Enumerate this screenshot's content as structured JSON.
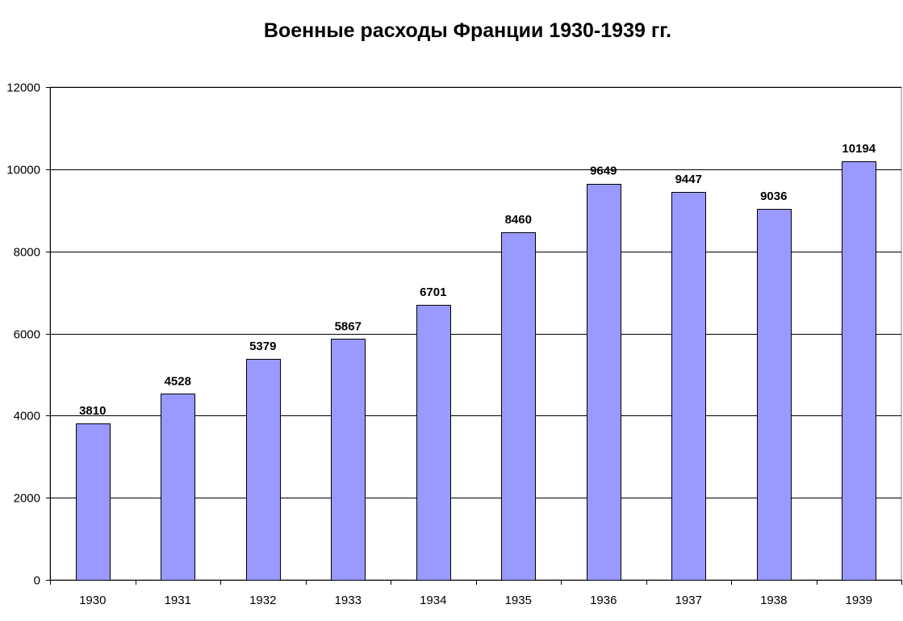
{
  "chart_data": {
    "type": "bar",
    "title": "Военные расходы Франции 1930-1939 гг.",
    "xlabel": "",
    "ylabel": "",
    "categories": [
      "1930",
      "1931",
      "1932",
      "1933",
      "1934",
      "1935",
      "1936",
      "1937",
      "1938",
      "1939"
    ],
    "values": [
      3810,
      4528,
      5379,
      5867,
      6701,
      8460,
      9649,
      9447,
      9036,
      10194
    ],
    "ylim": [
      0,
      12000
    ],
    "yticks": [
      0,
      2000,
      4000,
      6000,
      8000,
      10000,
      12000
    ],
    "grid": true,
    "legend": "none",
    "data_labels": true,
    "colors": {
      "bar_fill": "#9999ff",
      "bar_stroke": "#000000",
      "grid": "#000000",
      "background": "#ffffff"
    }
  }
}
